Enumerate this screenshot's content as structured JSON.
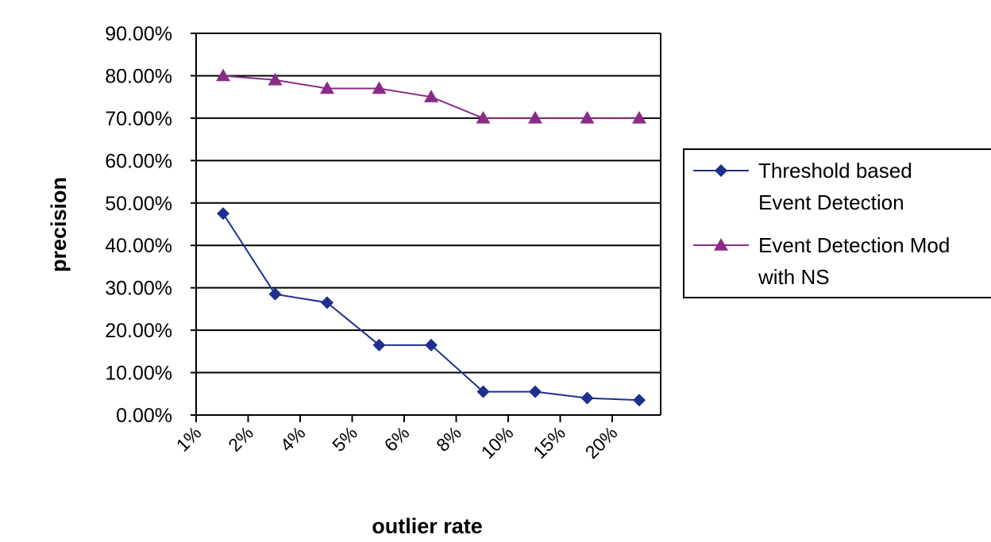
{
  "chart_data": {
    "type": "line",
    "title": "",
    "xlabel": "outlier rate",
    "ylabel": "precision",
    "categories": [
      "1%",
      "2%",
      "4%",
      "5%",
      "6%",
      "8%",
      "10%",
      "15%",
      "20%"
    ],
    "ylim": [
      0,
      0.9
    ],
    "yticks": [
      "0.00%",
      "10.00%",
      "20.00%",
      "30.00%",
      "40.00%",
      "50.00%",
      "60.00%",
      "70.00%",
      "80.00%",
      "90.00%"
    ],
    "grid": true,
    "legend_position": "right",
    "series": [
      {
        "name": "Threshold based Event Detection",
        "legend_lines": [
          "Threshold based",
          "Event Detection"
        ],
        "color": "#1f2f8f",
        "marker": "diamond",
        "values": [
          0.475,
          0.285,
          0.265,
          0.165,
          0.165,
          0.055,
          0.055,
          0.04,
          0.035
        ]
      },
      {
        "name": "Event Detection Mod with NS",
        "legend_lines": [
          "Event Detection Mod",
          "with NS"
        ],
        "color": "#8b2b86",
        "marker": "triangle",
        "values": [
          0.8,
          0.79,
          0.77,
          0.77,
          0.75,
          0.7,
          0.7,
          0.7,
          0.7
        ]
      }
    ]
  }
}
